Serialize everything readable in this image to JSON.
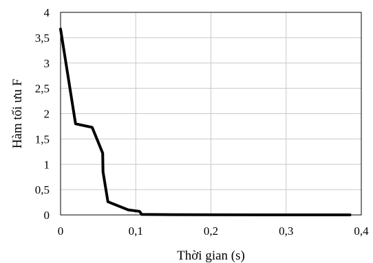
{
  "chart_data": {
    "type": "line",
    "title": "",
    "xlabel": "Thời gian (s)",
    "ylabel": "Hàm tối ưu F",
    "xlim": [
      0,
      0.4
    ],
    "ylim": [
      0,
      4
    ],
    "x_ticks": [
      0,
      0.1,
      0.2,
      0.3,
      0.4
    ],
    "x_tick_labels": [
      "0",
      "0,1",
      "0,2",
      "0,3",
      "0,4"
    ],
    "y_ticks": [
      0,
      0.5,
      1,
      1.5,
      2,
      2.5,
      3,
      3.5,
      4
    ],
    "y_tick_labels": [
      "0",
      "0,5",
      "1",
      "1,5",
      "2",
      "2,5",
      "3",
      "3,5",
      "4"
    ],
    "grid": true,
    "series": [
      {
        "color": "#000000",
        "x": [
          0,
          0.02,
          0.042,
          0.056,
          0.0565,
          0.063,
          0.09,
          0.105,
          0.108,
          0.15,
          0.2,
          0.3,
          0.385
        ],
        "y": [
          3.67,
          1.8,
          1.73,
          1.22,
          0.85,
          0.26,
          0.1,
          0.07,
          0.01,
          0.005,
          0.003,
          0.002,
          0.002
        ]
      }
    ]
  }
}
